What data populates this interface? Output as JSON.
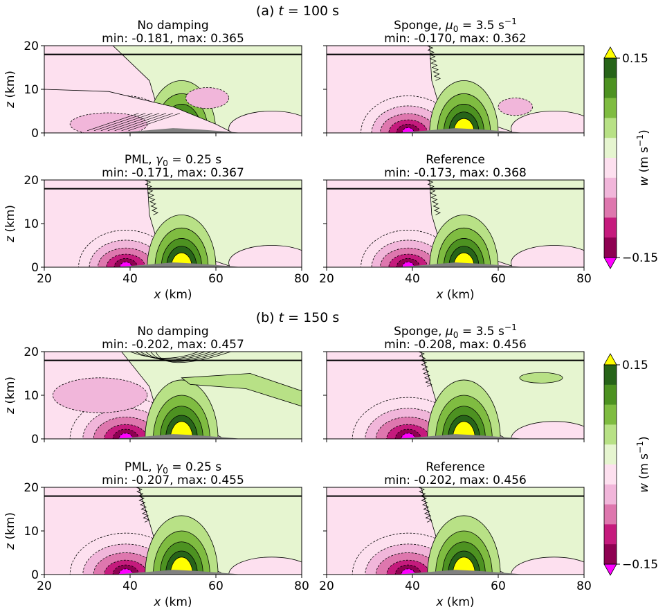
{
  "sections": [
    {
      "heading": {
        "prefix": "(a) ",
        "var": "t",
        "rest": " = 100 s"
      },
      "panels": [
        {
          "name": "No damping",
          "stats": "min: -0.181, max: 0.365",
          "variant": "nodamp",
          "show_x": false,
          "show_y": true
        },
        {
          "name_parts": [
            "Sponge, ",
            "μ",
            "0",
            " = 3.5 s",
            "−1"
          ],
          "stats": "min: -0.170, max: 0.362",
          "variant": "sponge",
          "show_x": false,
          "show_y": false
        },
        {
          "name_parts": [
            "PML, ",
            "γ",
            "0",
            " = 0.25 s"
          ],
          "stats": "min: -0.171, max: 0.367",
          "variant": "pml",
          "show_x": true,
          "show_y": true
        },
        {
          "name": "Reference",
          "stats": "min: -0.173, max: 0.368",
          "variant": "ref",
          "show_x": true,
          "show_y": false
        }
      ]
    },
    {
      "heading": {
        "prefix": "(b) ",
        "var": "t",
        "rest": " = 150 s"
      },
      "panels": [
        {
          "name": "No damping",
          "stats": "min: -0.202, max: 0.457",
          "variant": "nodamp",
          "show_x": false,
          "show_y": true
        },
        {
          "name_parts": [
            "Sponge, ",
            "μ",
            "0",
            " = 3.5 s",
            "−1"
          ],
          "stats": "min: -0.208, max: 0.456",
          "variant": "sponge",
          "show_x": false,
          "show_y": false
        },
        {
          "name_parts": [
            "PML, ",
            "γ",
            "0",
            " = 0.25 s"
          ],
          "stats": "min: -0.207, max: 0.455",
          "variant": "pml",
          "show_x": true,
          "show_y": true
        },
        {
          "name": "Reference",
          "stats": "min: -0.202, max: 0.456",
          "variant": "ref",
          "show_x": true,
          "show_y": false
        }
      ]
    }
  ],
  "axes": {
    "xlabel_var": "x",
    "xlabel_unit": " (km)",
    "ylabel_var": "z",
    "ylabel_unit": " (km)",
    "xticks": [
      "20",
      "40",
      "60",
      "80"
    ],
    "yticks": [
      "0",
      "10",
      "20"
    ]
  },
  "colorbar": {
    "label_var": "w",
    "label_unit": " (m s",
    "label_sup": "−1",
    "label_close": ")",
    "tick_top": "0.15",
    "tick_bottom": "−0.15",
    "colors_top_to_bottom": [
      "#276419",
      "#4d9221",
      "#7fbc41",
      "#b8e186",
      "#e6f5d0",
      "#fde0ef",
      "#f1b6da",
      "#de77ae",
      "#c51b7d",
      "#8e0152"
    ],
    "extend_max_color": "#ffff00",
    "extend_min_color": "#ff00ff"
  },
  "chart_data": {
    "type": "heatmap",
    "title": "",
    "xlabel": "x (km)",
    "ylabel": "z (km)",
    "xlim": [
      20,
      80
    ],
    "ylim": [
      0,
      20
    ],
    "damping_layer_z_km": 18,
    "colorbar_range": [
      -0.15,
      0.15
    ],
    "panel_stats": [
      {
        "time_s": 100,
        "case": "No damping",
        "min": -0.181,
        "max": 0.365
      },
      {
        "time_s": 100,
        "case": "Sponge",
        "min": -0.17,
        "max": 0.362
      },
      {
        "time_s": 100,
        "case": "PML",
        "min": -0.171,
        "max": 0.367
      },
      {
        "time_s": 100,
        "case": "Reference",
        "min": -0.173,
        "max": 0.368
      },
      {
        "time_s": 150,
        "case": "No damping",
        "min": -0.202,
        "max": 0.457
      },
      {
        "time_s": 150,
        "case": "Sponge",
        "min": -0.208,
        "max": 0.456
      },
      {
        "time_s": 150,
        "case": "PML",
        "min": -0.207,
        "max": 0.455
      },
      {
        "time_s": 150,
        "case": "Reference",
        "min": -0.202,
        "max": 0.456
      }
    ]
  }
}
